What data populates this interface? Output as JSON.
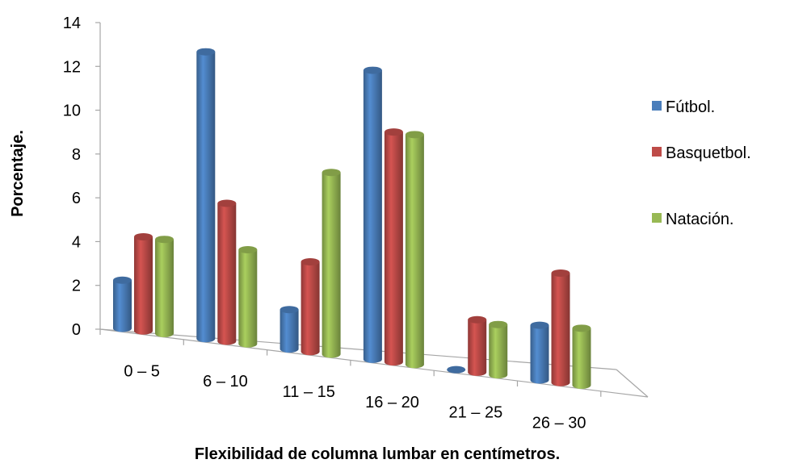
{
  "chart_data": {
    "type": "bar",
    "style": "3d-cylinder",
    "categories": [
      "0 – 5",
      "6 – 10",
      "11 – 15",
      "16 – 20",
      "21 – 25",
      "26 – 30"
    ],
    "series": [
      {
        "name": "Fútbol.",
        "color": "#4a7ebb",
        "values": [
          2.2,
          13.1,
          1.8,
          13.2,
          0,
          2.5
        ]
      },
      {
        "name": "Basquetbol.",
        "color": "#be4b48",
        "values": [
          4.3,
          6.3,
          4.1,
          10.5,
          2.4,
          5.0
        ]
      },
      {
        "name": "Natación.",
        "color": "#98b954",
        "values": [
          4.3,
          4.3,
          8.3,
          10.5,
          2.3,
          2.6
        ]
      }
    ],
    "title": "",
    "xlabel": "Flexibilidad de columna lumbar en centímetros.",
    "ylabel": "Porcentaje.",
    "ylim": [
      0,
      14
    ],
    "yticks": [
      0,
      2,
      4,
      6,
      8,
      10,
      12,
      14
    ],
    "grid": false,
    "legend_position": "right"
  }
}
